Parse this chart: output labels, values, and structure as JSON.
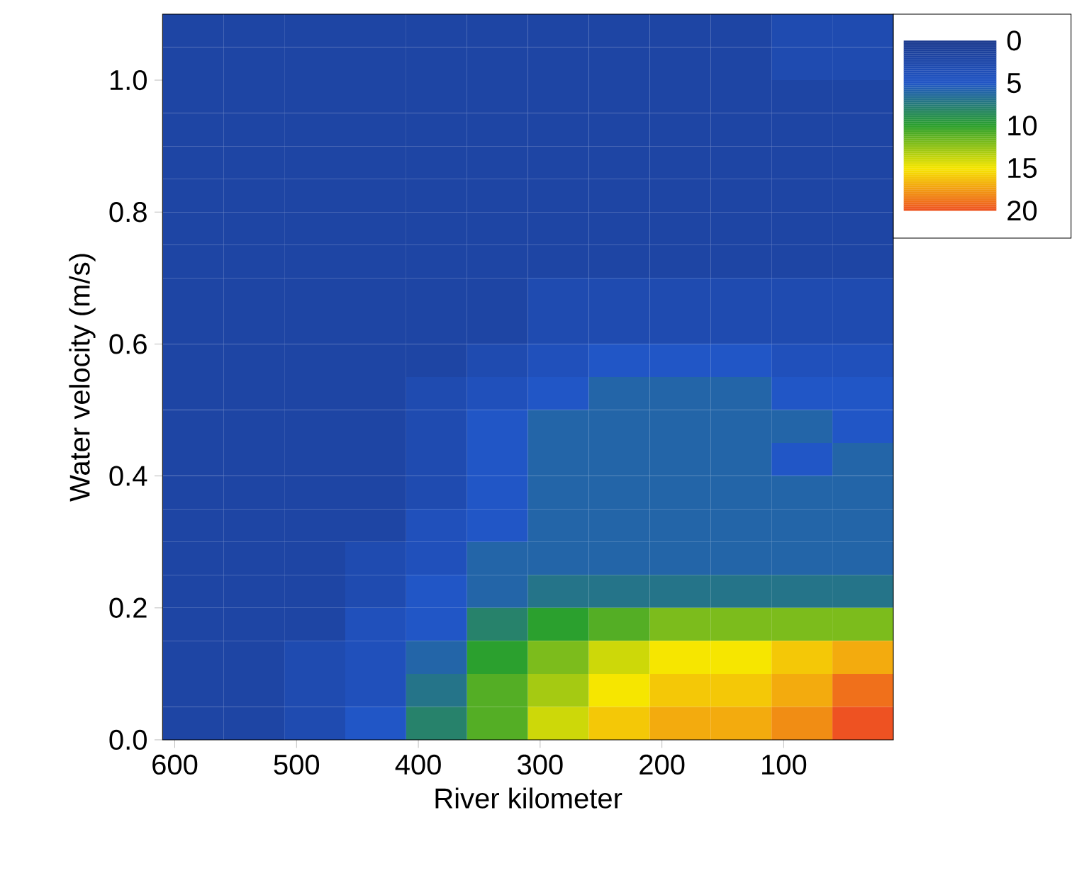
{
  "chart_data": {
    "type": "heatmap",
    "xlabel": "River kilometer",
    "ylabel": "Water velocity (m/s)",
    "x": [
      585,
      535,
      485,
      435,
      385,
      335,
      285,
      235,
      185,
      135,
      85,
      35
    ],
    "y": [
      1.075,
      1.025,
      0.975,
      0.925,
      0.875,
      0.825,
      0.775,
      0.725,
      0.675,
      0.625,
      0.575,
      0.525,
      0.475,
      0.425,
      0.375,
      0.325,
      0.275,
      0.225,
      0.175,
      0.125,
      0.075,
      0.025
    ],
    "xlim": [
      610,
      10
    ],
    "ylim": [
      0,
      1.1
    ],
    "xticks": [
      600,
      500,
      400,
      300,
      200,
      100
    ],
    "yticks": [
      {
        "value": 0,
        "label": "0.0"
      },
      {
        "value": 0.2,
        "label": "0.2"
      },
      {
        "value": 0.4,
        "label": "0.4"
      },
      {
        "value": 0.6,
        "label": "0.6"
      },
      {
        "value": 0.8,
        "label": "0.8"
      },
      {
        "value": 1.0,
        "label": "1.0"
      }
    ],
    "clim": [
      0,
      20
    ],
    "cticks": [
      0,
      5,
      10,
      15,
      20
    ],
    "colors": [
      "#1c3a8e",
      "#2156c6",
      "#2ba02e",
      "#f6e600",
      "#ee5222"
    ],
    "cells": [
      [
        2,
        2,
        2,
        2,
        2,
        2,
        2,
        2,
        2,
        2,
        3,
        3
      ],
      [
        2,
        2,
        2,
        2,
        2,
        2,
        2,
        2,
        2,
        2,
        3,
        3
      ],
      [
        2,
        2,
        2,
        2,
        2,
        2,
        2,
        2,
        2,
        2,
        2,
        2
      ],
      [
        2,
        2,
        2,
        2,
        2,
        2,
        2,
        2,
        2,
        2,
        2,
        2
      ],
      [
        2,
        2,
        2,
        2,
        2,
        2,
        2,
        2,
        2,
        2,
        2,
        2
      ],
      [
        2,
        2,
        2,
        2,
        2,
        2,
        2,
        2,
        2,
        2,
        2,
        2
      ],
      [
        2,
        2,
        2,
        2,
        2,
        2,
        2,
        2,
        2,
        2,
        2,
        2
      ],
      [
        2,
        2,
        2,
        2,
        2,
        2,
        2,
        2,
        2,
        2,
        2,
        2
      ],
      [
        2,
        2,
        2,
        2,
        2,
        2,
        3,
        3,
        3,
        3,
        3,
        3
      ],
      [
        2,
        2,
        2,
        2,
        2,
        2,
        3,
        3,
        3,
        3,
        3,
        3
      ],
      [
        2,
        2,
        2,
        2,
        2,
        3,
        4,
        5,
        5,
        5,
        4,
        4
      ],
      [
        2,
        2,
        2,
        2,
        3,
        4,
        5,
        6,
        6,
        6,
        5,
        5
      ],
      [
        2,
        2,
        2,
        2,
        3,
        5,
        6,
        6,
        6,
        6,
        6,
        5
      ],
      [
        2,
        2,
        2,
        2,
        3,
        5,
        6,
        6,
        6,
        6,
        5,
        6
      ],
      [
        2,
        2,
        2,
        2,
        3,
        5,
        6,
        6,
        6,
        6,
        6,
        6
      ],
      [
        2,
        2,
        2,
        2,
        4,
        5,
        6,
        6,
        6,
        6,
        6,
        6
      ],
      [
        2,
        2,
        2,
        3,
        4,
        6,
        6,
        6,
        6,
        6,
        6,
        6
      ],
      [
        2,
        2,
        2,
        3,
        5,
        6,
        7,
        7,
        7,
        7,
        7,
        7
      ],
      [
        2,
        2,
        2,
        4,
        5,
        8,
        10,
        11,
        12,
        12,
        12,
        12
      ],
      [
        2,
        2,
        3,
        4,
        6,
        10,
        12,
        14,
        15,
        15,
        16,
        17
      ],
      [
        2,
        2,
        3,
        4,
        7,
        11,
        13,
        15,
        16,
        16,
        17,
        19
      ],
      [
        2,
        2,
        3,
        5,
        8,
        11,
        14,
        16,
        17,
        17,
        18,
        20
      ]
    ]
  }
}
